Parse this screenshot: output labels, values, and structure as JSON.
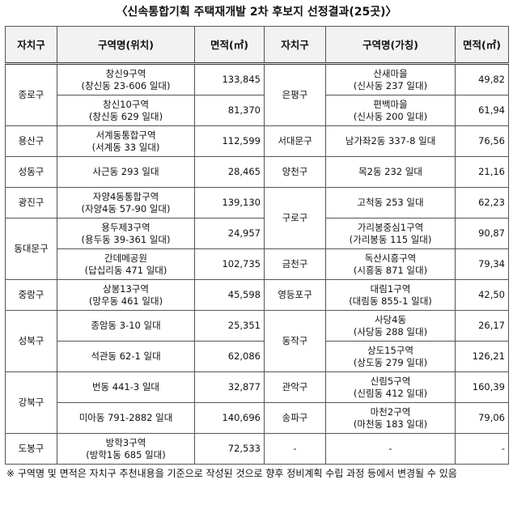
{
  "title": "〈신속통합기획 주택재개발 2차 후보지 선정결과(25곳)〉",
  "table": {
    "headers": [
      "자치구",
      "구역명(위치)",
      "면적(㎡)",
      "자치구",
      "구역명(가칭)",
      "면적(㎡)"
    ],
    "left": [
      {
        "district": "종로구",
        "items": [
          {
            "name": "창신9구역",
            "location": "(창신동 23-606 일대)",
            "area": "133,845"
          },
          {
            "name": "창신10구역",
            "location": "(창신동 629 일대)",
            "area": "81,370"
          }
        ]
      },
      {
        "district": "용산구",
        "items": [
          {
            "name": "서계동통합구역",
            "location": "(서계동 33 일대)",
            "area": "112,599"
          }
        ]
      },
      {
        "district": "성동구",
        "items": [
          {
            "name": "사근동 293 일대",
            "area": "28,465"
          }
        ]
      },
      {
        "district": "광진구",
        "items": [
          {
            "name": "자양4동통합구역",
            "location": "(자양4동 57-90 일대)",
            "area": "139,130"
          }
        ]
      },
      {
        "district": "동대문구",
        "items": [
          {
            "name": "용두제3구역",
            "location": "(용두동 39-361 일대)",
            "area": "24,957"
          },
          {
            "name": "간데메공원",
            "location": "(답십리동 471 일대)",
            "area": "102,735"
          }
        ]
      },
      {
        "district": "중랑구",
        "items": [
          {
            "name": "상봉13구역",
            "location": "(망우동 461 일대)",
            "area": "45,598"
          }
        ]
      },
      {
        "district": "성북구",
        "items": [
          {
            "name": "종암동 3-10 일대",
            "area": "25,351"
          },
          {
            "name": "석관동 62-1 일대",
            "area": "62,086"
          }
        ]
      },
      {
        "district": "강북구",
        "items": [
          {
            "name": "번동 441-3 일대",
            "area": "32,877"
          },
          {
            "name": "미아동 791-2882 일대",
            "area": "140,696"
          }
        ]
      },
      {
        "district": "도봉구",
        "items": [
          {
            "name": "방학3구역",
            "location": "(방학1동 685 일대)",
            "area": "72,533"
          }
        ]
      }
    ],
    "right": [
      {
        "district": "은평구",
        "items": [
          {
            "name": "산새마을",
            "location": "(신사동 237 일대)",
            "area": "49,82"
          },
          {
            "name": "편백마을",
            "location": "(신사동 200 일대)",
            "area": "61,94"
          }
        ]
      },
      {
        "district": "서대문구",
        "items": [
          {
            "name": "남가좌2동 337-8 일대",
            "area": "76,56"
          }
        ]
      },
      {
        "district": "양천구",
        "items": [
          {
            "name": "목2동 232 일대",
            "area": "21,16"
          }
        ]
      },
      {
        "district": "구로구",
        "items": [
          {
            "name": "고척동 253 일대",
            "area": "62,23"
          },
          {
            "name": "가리봉중심1구역",
            "location": "(가리봉동 115 일대)",
            "area": "90,87"
          }
        ]
      },
      {
        "district": "금천구",
        "items": [
          {
            "name": "독산시흥구역",
            "location": "(시흥동 871 일대)",
            "area": "79,34"
          }
        ]
      },
      {
        "district": "영등포구",
        "items": [
          {
            "name": "대림1구역",
            "location": "(대림동 855-1 일대)",
            "area": "42,50"
          }
        ]
      },
      {
        "district": "동작구",
        "items": [
          {
            "name": "사당4동",
            "location": "(사당동 288 일대)",
            "area": "26,17"
          },
          {
            "name": "상도15구역",
            "location": "(상도동 279 일대)",
            "area": "126,21"
          }
        ]
      },
      {
        "district": "관악구",
        "items": [
          {
            "name": "신림5구역",
            "location": "(신림동 412 일대)",
            "area": "160,39"
          }
        ]
      },
      {
        "district": "송파구",
        "items": [
          {
            "name": "마천2구역",
            "location": "(마천동 183 일대)",
            "area": "79,06"
          }
        ]
      },
      {
        "district": "-",
        "items": [
          {
            "name": "-",
            "area": "-"
          }
        ]
      }
    ]
  },
  "note": "※ 구역명 및 면적은 자치구 추천내용을 기준으로 작성된 것으로 향후 정비계획 수립 과정 등에서 변경될 수 있음"
}
